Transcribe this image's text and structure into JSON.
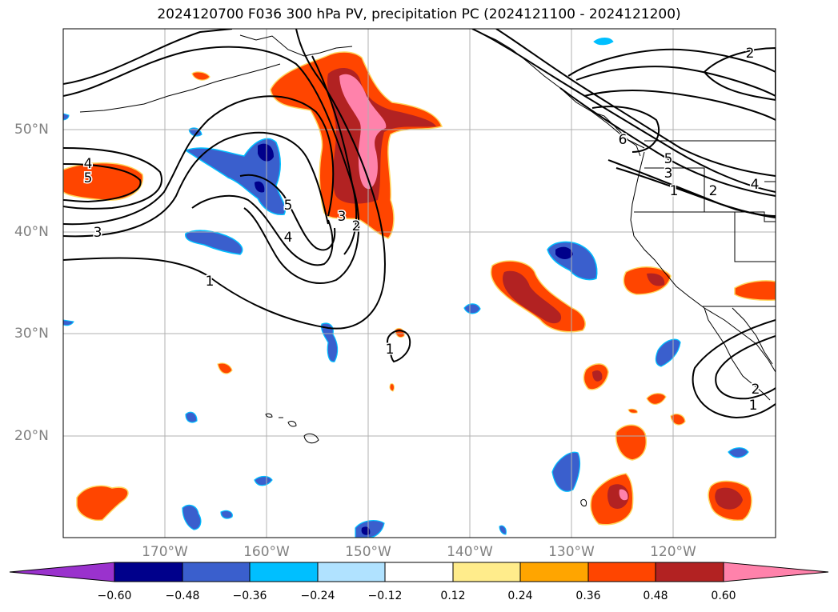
{
  "title": "2024120700 F036 300 hPa PV, precipitation PC (2024121100 - 2024121200)",
  "lat_labels": [
    "50°N",
    "40°N",
    "30°N",
    "20°N"
  ],
  "lon_labels": [
    "170°W",
    "160°W",
    "150°W",
    "140°W",
    "130°W",
    "120°W"
  ],
  "pv_contour_labels": [
    "4",
    "5",
    "3",
    "1",
    "5",
    "4",
    "3",
    "2",
    "2",
    "6",
    "5",
    "3",
    "1",
    "2",
    "4",
    "1",
    "1",
    "2"
  ],
  "colorbar": {
    "ticks": [
      "−0.60",
      "−0.48",
      "−0.36",
      "−0.24",
      "−0.12",
      "0.12",
      "0.24",
      "0.36",
      "0.48",
      "0.60"
    ],
    "colors": [
      "#9a32cd",
      "#00008b",
      "#3a5fcd",
      "#00bfff",
      "#b0e2ff",
      "#ffffff",
      "#ffec8b",
      "#ffa500",
      "#ff4500",
      "#b22222",
      "#ff82ab"
    ]
  },
  "map_extent": {
    "lon_min": -180,
    "lon_max": -110,
    "lat_min": 10,
    "lat_max": 60
  }
}
